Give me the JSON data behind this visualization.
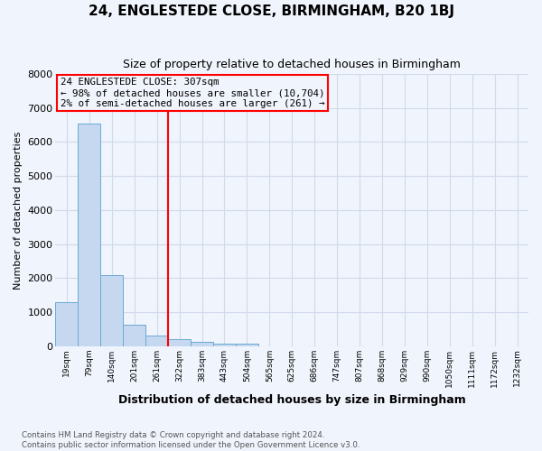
{
  "title": "24, ENGLESTEDE CLOSE, BIRMINGHAM, B20 1BJ",
  "subtitle": "Size of property relative to detached houses in Birmingham",
  "xlabel": "Distribution of detached houses by size in Birmingham",
  "ylabel": "Number of detached properties",
  "footnote1": "Contains HM Land Registry data © Crown copyright and database right 2024.",
  "footnote2": "Contains public sector information licensed under the Open Government Licence v3.0.",
  "bar_labels": [
    "19sqm",
    "79sqm",
    "140sqm",
    "201sqm",
    "261sqm",
    "322sqm",
    "383sqm",
    "443sqm",
    "504sqm",
    "565sqm",
    "625sqm",
    "686sqm",
    "747sqm",
    "807sqm",
    "868sqm",
    "929sqm",
    "990sqm",
    "1050sqm",
    "1111sqm",
    "1172sqm",
    "1232sqm"
  ],
  "bar_values": [
    1300,
    6550,
    2100,
    620,
    300,
    210,
    120,
    70,
    70,
    0,
    0,
    0,
    0,
    0,
    0,
    0,
    0,
    0,
    0,
    0,
    0
  ],
  "bar_color": "#c5d8f0",
  "bar_edge_color": "#6aaad4",
  "vline_x_idx": 4.5,
  "vline_color": "red",
  "ylim": [
    0,
    8000
  ],
  "yticks": [
    0,
    1000,
    2000,
    3000,
    4000,
    5000,
    6000,
    7000,
    8000
  ],
  "annotation_line1": "24 ENGLESTEDE CLOSE: 307sqm",
  "annotation_line2": "← 98% of detached houses are smaller (10,704)",
  "annotation_line3": "2% of semi-detached houses are larger (261) →",
  "annotation_box_color": "red",
  "grid_color": "#d0daea",
  "background_color": "#f0f4fc"
}
